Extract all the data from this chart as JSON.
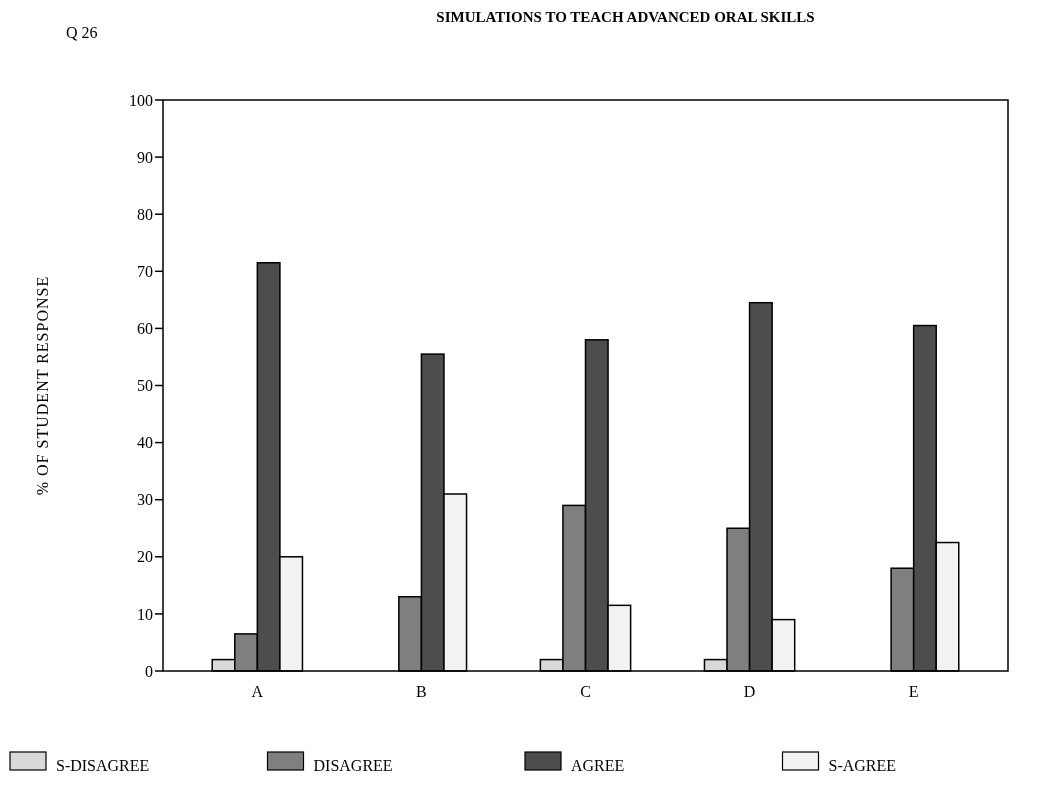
{
  "chart_data": {
    "type": "bar",
    "title": "SIMULATIONS TO TEACH ADVANCED ORAL SKILLS",
    "annotations": [
      "Q 26"
    ],
    "ylabel": "% OF STUDENT RESPONSE",
    "categories": [
      "A",
      "B",
      "C",
      "D",
      "E"
    ],
    "series": [
      {
        "name": "S-DISAGREE",
        "color": "#d9d9d9",
        "values": [
          2,
          0,
          2,
          2,
          0
        ]
      },
      {
        "name": "DISAGREE",
        "color": "#7f7f7f",
        "values": [
          6.5,
          13,
          29,
          25,
          18
        ]
      },
      {
        "name": "AGREE",
        "color": "#4d4d4d",
        "values": [
          71.5,
          55.5,
          58,
          64.5,
          60.5
        ]
      },
      {
        "name": "S-AGREE",
        "color": "#f2f2f2",
        "values": [
          20,
          31,
          11.5,
          9,
          22.5
        ]
      }
    ],
    "ylim": [
      0,
      100
    ],
    "yticks": [
      0,
      10,
      20,
      30,
      40,
      50,
      60,
      70,
      80,
      90,
      100
    ],
    "grid": false,
    "legend": "bottom"
  }
}
